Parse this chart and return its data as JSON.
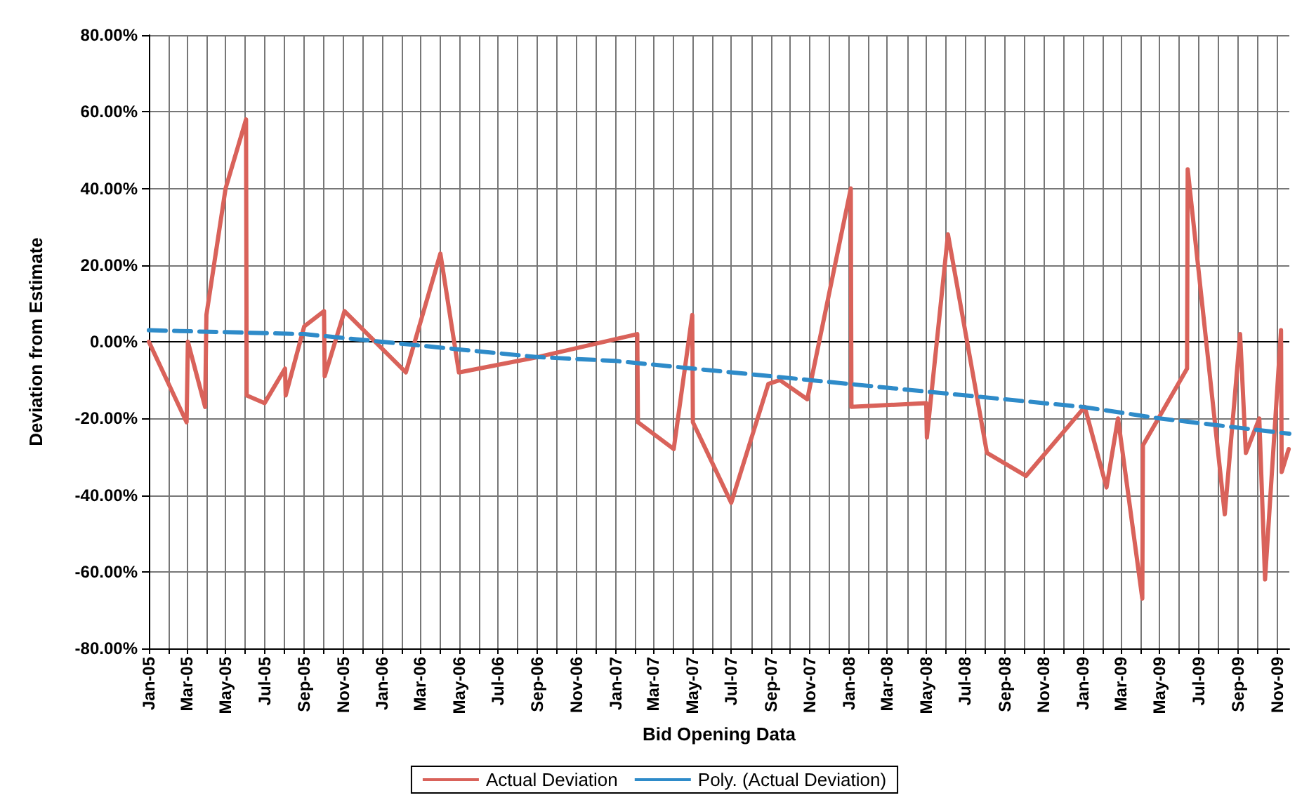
{
  "chart_data": {
    "type": "line",
    "xlabel": "Bid Opening Data",
    "ylabel": "Deviation from Estimate",
    "grid": true,
    "legend": "bottom",
    "marker": "none",
    "xlim": [
      "2005-01-01",
      "2009-11-20"
    ],
    "xticks": [
      {
        "value": "2005-01",
        "label": "Jan-05"
      },
      {
        "value": "2005-02",
        "label": null
      },
      {
        "value": "2005-03",
        "label": "Mar-05"
      },
      {
        "value": "2005-04",
        "label": null
      },
      {
        "value": "2005-05",
        "label": "May-05"
      },
      {
        "value": "2005-06",
        "label": null
      },
      {
        "value": "2005-07",
        "label": "Jul-05"
      },
      {
        "value": "2005-08",
        "label": null
      },
      {
        "value": "2005-09",
        "label": "Sep-05"
      },
      {
        "value": "2005-10",
        "label": null
      },
      {
        "value": "2005-11",
        "label": "Nov-05"
      },
      {
        "value": "2005-12",
        "label": null
      },
      {
        "value": "2006-01",
        "label": "Jan-06"
      },
      {
        "value": "2006-02",
        "label": null
      },
      {
        "value": "2006-03",
        "label": "Mar-06"
      },
      {
        "value": "2006-04",
        "label": null
      },
      {
        "value": "2006-05",
        "label": "May-06"
      },
      {
        "value": "2006-06",
        "label": null
      },
      {
        "value": "2006-07",
        "label": "Jul-06"
      },
      {
        "value": "2006-08",
        "label": null
      },
      {
        "value": "2006-09",
        "label": "Sep-06"
      },
      {
        "value": "2006-10",
        "label": null
      },
      {
        "value": "2006-11",
        "label": "Nov-06"
      },
      {
        "value": "2006-12",
        "label": null
      },
      {
        "value": "2007-01",
        "label": "Jan-07"
      },
      {
        "value": "2007-02",
        "label": null
      },
      {
        "value": "2007-03",
        "label": "Mar-07"
      },
      {
        "value": "2007-04",
        "label": null
      },
      {
        "value": "2007-05",
        "label": "May-07"
      },
      {
        "value": "2007-06",
        "label": null
      },
      {
        "value": "2007-07",
        "label": "Jul-07"
      },
      {
        "value": "2007-08",
        "label": null
      },
      {
        "value": "2007-09",
        "label": "Sep-07"
      },
      {
        "value": "2007-10",
        "label": null
      },
      {
        "value": "2007-11",
        "label": "Nov-07"
      },
      {
        "value": "2007-12",
        "label": null
      },
      {
        "value": "2008-01",
        "label": "Jan-08"
      },
      {
        "value": "2008-02",
        "label": null
      },
      {
        "value": "2008-03",
        "label": "Mar-08"
      },
      {
        "value": "2008-04",
        "label": null
      },
      {
        "value": "2008-05",
        "label": "May-08"
      },
      {
        "value": "2008-06",
        "label": null
      },
      {
        "value": "2008-07",
        "label": "Jul-08"
      },
      {
        "value": "2008-08",
        "label": null
      },
      {
        "value": "2008-09",
        "label": "Sep-08"
      },
      {
        "value": "2008-10",
        "label": null
      },
      {
        "value": "2008-11",
        "label": "Nov-08"
      },
      {
        "value": "2008-12",
        "label": null
      },
      {
        "value": "2009-01",
        "label": "Jan-09"
      },
      {
        "value": "2009-02",
        "label": null
      },
      {
        "value": "2009-03",
        "label": "Mar-09"
      },
      {
        "value": "2009-04",
        "label": null
      },
      {
        "value": "2009-05",
        "label": "May-09"
      },
      {
        "value": "2009-06",
        "label": null
      },
      {
        "value": "2009-07",
        "label": "Jul-09"
      },
      {
        "value": "2009-08",
        "label": null
      },
      {
        "value": "2009-09",
        "label": "Sep-09"
      },
      {
        "value": "2009-10",
        "label": null
      },
      {
        "value": "2009-11",
        "label": "Nov-09"
      }
    ],
    "ylim": [
      -80,
      80
    ],
    "yticks": [
      {
        "value": -80,
        "label": "-80.00%"
      },
      {
        "value": -60,
        "label": "-60.00%"
      },
      {
        "value": -40,
        "label": "-40.00%"
      },
      {
        "value": -20,
        "label": "-20.00%"
      },
      {
        "value": 0,
        "label": "0.00%"
      },
      {
        "value": 20,
        "label": "20.00%"
      },
      {
        "value": 40,
        "label": "40.00%"
      },
      {
        "value": 60,
        "label": "60.00%"
      },
      {
        "value": 80,
        "label": "80.00%"
      }
    ],
    "series": [
      {
        "name": "Actual Deviation",
        "color": "#d9625a",
        "line_style": "solid",
        "x": [
          "2005-01-01",
          "2005-03-01",
          "2005-03-03",
          "2005-03-30",
          "2005-04-01",
          "2005-05-01",
          "2005-06-02",
          "2005-06-03",
          "2005-07-01",
          "2005-08-02",
          "2005-08-03",
          "2005-09-01",
          "2005-10-02",
          "2005-10-03",
          "2005-11-03",
          "2006-02-07",
          "2006-04-02",
          "2006-05-01",
          "2006-09-01",
          "2007-02-04",
          "2007-02-05",
          "2007-04-02",
          "2007-05-01",
          "2007-05-02",
          "2007-07-01",
          "2007-08-28",
          "2007-09-15",
          "2007-10-28",
          "2008-01-04",
          "2008-01-05",
          "2008-05-01",
          "2008-05-02",
          "2008-06-04",
          "2008-08-04",
          "2008-10-04",
          "2009-01-04",
          "2009-02-07",
          "2009-02-25",
          "2009-04-04",
          "2009-04-05",
          "2009-06-13",
          "2009-06-14",
          "2009-08-11",
          "2009-09-04",
          "2009-09-13",
          "2009-10-04",
          "2009-10-13",
          "2009-11-07",
          "2009-11-08",
          "2009-11-19"
        ],
        "values": [
          0,
          -21,
          0,
          -17,
          7,
          40,
          58,
          -14,
          -16,
          -7,
          -14,
          4,
          8,
          -9,
          8,
          -8,
          23,
          -8,
          -4,
          2,
          -21,
          -28,
          7,
          -21,
          -42,
          -11,
          -10,
          -15,
          40,
          -17,
          -16,
          -25,
          28,
          -29,
          -35,
          -17,
          -38,
          -20,
          -67,
          -27,
          -7,
          45,
          -45,
          2,
          -29,
          -20,
          -62,
          3,
          -34,
          -28
        ]
      },
      {
        "name": "Poly. (Actual Deviation)",
        "color": "#2e8bc9",
        "line_style": "dashed",
        "x": [
          "2005-01-01",
          "2005-09-01",
          "2006-05-01",
          "2006-09-01",
          "2007-01-01",
          "2007-11-01",
          "2008-05-01",
          "2009-01-01",
          "2009-05-01",
          "2009-11-20"
        ],
        "values": [
          3,
          2,
          -2,
          -4,
          -5,
          -10,
          -13,
          -17,
          -20,
          -24
        ]
      }
    ]
  }
}
